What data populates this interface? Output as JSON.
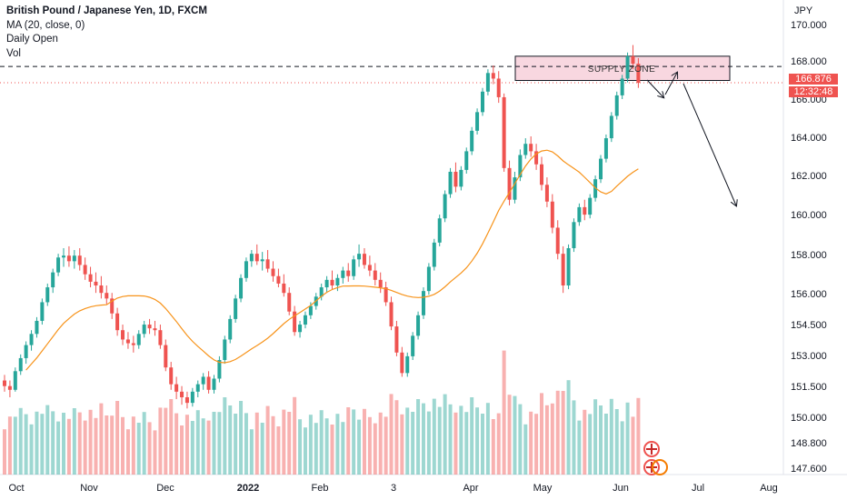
{
  "legend": {
    "title": "British Pound / Japanese Yen, 1D, FXCM",
    "ma": "MA (20, close, 0)",
    "daily_open": "Daily Open",
    "vol": "Vol"
  },
  "axis": {
    "currency": "JPY",
    "price_labels": [
      "170.000",
      "168.000",
      "164.000",
      "162.000",
      "160.000",
      "158.000",
      "156.000",
      "154.500",
      "153.000",
      "151.500",
      "150.000",
      "148.800",
      "147.600"
    ],
    "time_labels": [
      "Oct",
      "Nov",
      "Dec",
      "2022",
      "Feb",
      "3",
      "Apr",
      "May",
      "Jun",
      "Jul",
      "Aug"
    ]
  },
  "current_price": {
    "value": "166.876",
    "countdown": "12:32:48"
  },
  "annotation": {
    "supply_zone": "SUPPLY ZONE"
  },
  "colors": {
    "up": "#26a69a",
    "down": "#ef5350",
    "ma": "#f7931a",
    "zone": "#f8d7e0",
    "current": "#ef5350"
  },
  "chart_data": {
    "type": "candlestick",
    "symbol": "GBPJPY",
    "interval": "1D",
    "yaxis": {
      "ticks": [
        170.0,
        168.0,
        166.0,
        164.0,
        162.0,
        160.0,
        158.0,
        156.0,
        154.5,
        153.0,
        151.5,
        150.0,
        148.8,
        147.6
      ]
    },
    "xaxis": {
      "ticks": [
        "Oct",
        "Nov",
        "Dec",
        "2022",
        "Feb",
        "3",
        "Apr",
        "May",
        "Jun",
        "Jul",
        "Aug"
      ]
    },
    "ohlc": [
      [
        150.9,
        151.2,
        150.3,
        150.6
      ],
      [
        150.6,
        150.9,
        150.0,
        150.4
      ],
      [
        150.4,
        151.6,
        150.3,
        151.4
      ],
      [
        151.4,
        152.3,
        151.2,
        152.1
      ],
      [
        152.1,
        153.0,
        151.8,
        152.8
      ],
      [
        152.8,
        153.6,
        152.5,
        153.4
      ],
      [
        153.4,
        154.3,
        153.2,
        154.1
      ],
      [
        154.1,
        155.3,
        153.9,
        155.1
      ],
      [
        155.1,
        156.1,
        154.9,
        155.9
      ],
      [
        155.9,
        156.9,
        155.6,
        156.7
      ],
      [
        156.7,
        157.7,
        156.5,
        157.5
      ],
      [
        157.5,
        158.0,
        157.0,
        157.6
      ],
      [
        157.6,
        158.1,
        157.0,
        157.3
      ],
      [
        157.3,
        157.9,
        156.9,
        157.6
      ],
      [
        157.6,
        158.0,
        156.8,
        157.1
      ],
      [
        157.1,
        157.5,
        156.3,
        156.6
      ],
      [
        156.6,
        157.0,
        155.9,
        156.2
      ],
      [
        156.2,
        156.7,
        155.6,
        156.0
      ],
      [
        156.0,
        156.5,
        155.3,
        155.6
      ],
      [
        155.6,
        156.0,
        155.0,
        155.3
      ],
      [
        155.3,
        155.6,
        154.2,
        154.5
      ],
      [
        154.5,
        154.8,
        153.3,
        153.6
      ],
      [
        153.6,
        153.9,
        152.8,
        153.1
      ],
      [
        153.1,
        153.5,
        152.6,
        152.9
      ],
      [
        152.9,
        153.3,
        152.4,
        152.8
      ],
      [
        152.8,
        153.6,
        152.6,
        153.4
      ],
      [
        153.4,
        154.1,
        153.2,
        153.9
      ],
      [
        153.9,
        154.2,
        153.4,
        153.7
      ],
      [
        153.7,
        154.1,
        153.3,
        153.6
      ],
      [
        153.6,
        153.9,
        152.6,
        152.8
      ],
      [
        152.8,
        153.1,
        151.4,
        151.6
      ],
      [
        151.6,
        151.9,
        150.4,
        150.7
      ],
      [
        150.7,
        151.1,
        149.9,
        150.3
      ],
      [
        150.3,
        150.6,
        149.6,
        150.0
      ],
      [
        150.0,
        150.3,
        149.4,
        149.7
      ],
      [
        149.7,
        150.5,
        149.5,
        150.3
      ],
      [
        150.3,
        150.9,
        150.0,
        150.7
      ],
      [
        150.7,
        151.3,
        150.4,
        151.1
      ],
      [
        151.1,
        151.4,
        150.2,
        150.4
      ],
      [
        150.4,
        151.2,
        150.2,
        151.0
      ],
      [
        151.0,
        152.2,
        150.8,
        152.0
      ],
      [
        152.0,
        153.3,
        151.8,
        153.1
      ],
      [
        153.1,
        154.4,
        152.9,
        154.2
      ],
      [
        154.2,
        155.5,
        154.0,
        155.3
      ],
      [
        155.3,
        156.6,
        155.1,
        156.4
      ],
      [
        156.4,
        157.5,
        156.2,
        157.3
      ],
      [
        157.3,
        157.9,
        157.0,
        157.7
      ],
      [
        157.7,
        158.2,
        157.1,
        157.3
      ],
      [
        157.3,
        157.8,
        156.8,
        157.4
      ],
      [
        157.4,
        157.9,
        156.7,
        156.9
      ],
      [
        156.9,
        157.3,
        156.2,
        156.5
      ],
      [
        156.5,
        156.9,
        155.9,
        156.1
      ],
      [
        156.1,
        156.6,
        155.4,
        155.6
      ],
      [
        155.6,
        155.9,
        154.4,
        154.6
      ],
      [
        154.6,
        154.9,
        153.3,
        153.5
      ],
      [
        153.5,
        154.1,
        153.2,
        153.9
      ],
      [
        153.9,
        154.6,
        153.7,
        154.4
      ],
      [
        154.4,
        155.1,
        154.2,
        154.9
      ],
      [
        154.9,
        155.6,
        154.7,
        155.4
      ],
      [
        155.4,
        156.1,
        155.2,
        155.9
      ],
      [
        155.9,
        156.5,
        155.6,
        156.3
      ],
      [
        156.3,
        156.8,
        155.8,
        156.0
      ],
      [
        156.0,
        156.6,
        155.7,
        156.4
      ],
      [
        156.4,
        157.0,
        156.1,
        156.8
      ],
      [
        156.8,
        157.2,
        156.2,
        156.5
      ],
      [
        156.5,
        157.6,
        156.3,
        157.4
      ],
      [
        157.4,
        158.2,
        157.0,
        157.7
      ],
      [
        157.7,
        158.0,
        156.9,
        157.1
      ],
      [
        157.1,
        157.6,
        156.5,
        156.8
      ],
      [
        156.8,
        157.2,
        156.0,
        156.3
      ],
      [
        156.3,
        156.7,
        155.6,
        155.9
      ],
      [
        155.9,
        156.2,
        154.9,
        155.1
      ],
      [
        155.1,
        155.4,
        153.6,
        153.8
      ],
      [
        153.8,
        154.1,
        152.2,
        152.4
      ],
      [
        152.4,
        152.7,
        151.1,
        151.3
      ],
      [
        151.3,
        152.4,
        151.1,
        152.2
      ],
      [
        152.2,
        153.5,
        152.0,
        153.3
      ],
      [
        153.3,
        154.6,
        153.1,
        154.4
      ],
      [
        154.4,
        155.9,
        154.2,
        155.7
      ],
      [
        155.7,
        157.2,
        155.5,
        157.0
      ],
      [
        157.0,
        158.5,
        156.8,
        158.3
      ],
      [
        158.3,
        159.8,
        158.1,
        159.6
      ],
      [
        159.6,
        161.1,
        159.4,
        160.9
      ],
      [
        160.9,
        162.3,
        160.7,
        162.1
      ],
      [
        162.1,
        162.6,
        161.0,
        161.3
      ],
      [
        161.3,
        162.4,
        161.1,
        162.2
      ],
      [
        162.2,
        163.4,
        162.0,
        163.2
      ],
      [
        163.2,
        164.5,
        163.0,
        164.3
      ],
      [
        164.3,
        165.5,
        164.1,
        165.3
      ],
      [
        165.3,
        166.6,
        165.1,
        166.4
      ],
      [
        166.4,
        167.6,
        166.2,
        167.4
      ],
      [
        167.4,
        167.8,
        166.8,
        167.1
      ],
      [
        167.1,
        167.5,
        165.8,
        166.1
      ],
      [
        166.1,
        166.3,
        162.1,
        162.3
      ],
      [
        162.3,
        162.7,
        160.3,
        160.6
      ],
      [
        160.6,
        162.1,
        160.4,
        161.8
      ],
      [
        161.8,
        163.3,
        161.6,
        163.0
      ],
      [
        163.0,
        163.9,
        162.8,
        163.6
      ],
      [
        163.6,
        164.0,
        162.9,
        163.2
      ],
      [
        163.2,
        163.6,
        162.2,
        162.5
      ],
      [
        162.5,
        162.9,
        161.1,
        161.4
      ],
      [
        161.4,
        161.8,
        160.2,
        160.5
      ],
      [
        160.5,
        160.9,
        158.8,
        159.1
      ],
      [
        159.1,
        159.5,
        157.4,
        157.7
      ],
      [
        157.7,
        158.1,
        155.6,
        156.0
      ],
      [
        156.0,
        158.2,
        155.8,
        158.0
      ],
      [
        158.0,
        159.6,
        157.8,
        159.4
      ],
      [
        159.4,
        160.4,
        159.2,
        160.2
      ],
      [
        160.2,
        160.6,
        159.5,
        159.8
      ],
      [
        159.8,
        160.9,
        159.6,
        160.7
      ],
      [
        160.7,
        161.9,
        160.5,
        161.7
      ],
      [
        161.7,
        163.0,
        161.5,
        162.8
      ],
      [
        162.8,
        164.1,
        162.6,
        163.9
      ],
      [
        163.9,
        165.3,
        163.7,
        165.1
      ],
      [
        165.1,
        166.4,
        164.9,
        166.2
      ],
      [
        166.2,
        167.3,
        166.0,
        167.1
      ],
      [
        167.1,
        168.5,
        166.9,
        168.3
      ],
      [
        168.3,
        168.9,
        167.6,
        167.9
      ],
      [
        167.9,
        168.2,
        166.6,
        166.876
      ]
    ],
    "ma20_range": {
      "start": 151.0,
      "end": 162.4
    },
    "volume": {
      "note": "Volume histogram, bars coloured by candle direction"
    },
    "current_price": 166.876,
    "annotations": [
      {
        "type": "rectangle",
        "label": "SUPPLY ZONE",
        "price_from": 167.0,
        "price_to": 168.3
      },
      {
        "type": "horizontal_line",
        "style": "dashed",
        "price": 167.75
      },
      {
        "type": "projection_arrows",
        "path": [
          "168.3 -> 166.4",
          "166.4 -> 167.8",
          "167.8 -> 160.6"
        ]
      }
    ]
  }
}
